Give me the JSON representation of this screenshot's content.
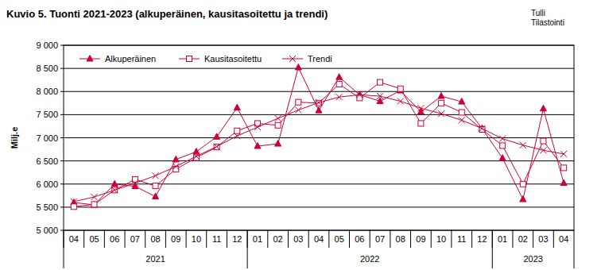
{
  "chart_data": {
    "type": "line",
    "title": "Kuvio 5. Tuonti 2021-2023  (alkuperäinen, kausitasoitettu  ja trendi)",
    "source": [
      "Tulli",
      "Tilastointi"
    ],
    "y_label": "Milj.e",
    "categories": [
      "04",
      "05",
      "06",
      "07",
      "08",
      "09",
      "10",
      "11",
      "12",
      "01",
      "02",
      "03",
      "04",
      "05",
      "06",
      "07",
      "08",
      "09",
      "10",
      "11",
      "12",
      "01",
      "02",
      "03",
      "04"
    ],
    "year_groups": [
      {
        "label": "2021",
        "count": 9
      },
      {
        "label": "2022",
        "count": 12
      },
      {
        "label": "2023",
        "count": 4
      }
    ],
    "series": [
      {
        "name": "Alkuperäinen",
        "color": "#cc0033",
        "marker": "triangle",
        "values": [
          5600,
          5550,
          6000,
          5950,
          5730,
          6530,
          6700,
          7020,
          7650,
          6820,
          6870,
          8520,
          7590,
          8310,
          7930,
          7790,
          8020,
          7560,
          7900,
          7780,
          7200,
          6560,
          5670,
          7630,
          6020
        ]
      },
      {
        "name": "Kausitasoitettu",
        "color": "#cc0033",
        "marker": "square",
        "values": [
          5510,
          5560,
          5870,
          6100,
          5960,
          6320,
          6570,
          6800,
          7150,
          7310,
          7270,
          7770,
          7750,
          8160,
          7860,
          8200,
          8060,
          7310,
          7750,
          7550,
          7180,
          6830,
          6000,
          6930,
          6350
        ]
      },
      {
        "name": "Trendi",
        "color": "#cc0033",
        "marker": "x",
        "values": [
          5620,
          5720,
          5870,
          6020,
          6180,
          6380,
          6600,
          6810,
          7040,
          7230,
          7420,
          7600,
          7760,
          7880,
          7930,
          7900,
          7790,
          7640,
          7520,
          7380,
          7200,
          6980,
          6840,
          6730,
          6650
        ]
      }
    ],
    "ylim": [
      5000,
      9000
    ],
    "yticks": [
      {
        "value": 5000,
        "label": "5 000"
      },
      {
        "value": 5500,
        "label": "5 500"
      },
      {
        "value": 6000,
        "label": "6 000"
      },
      {
        "value": 6500,
        "label": "6 500"
      },
      {
        "value": 7000,
        "label": "7 000"
      },
      {
        "value": 7500,
        "label": "7 500"
      },
      {
        "value": 8000,
        "label": "8 000"
      },
      {
        "value": 8500,
        "label": "8 500"
      },
      {
        "value": 9000,
        "label": "9 000"
      }
    ],
    "grid": true,
    "legend": "top-left"
  }
}
